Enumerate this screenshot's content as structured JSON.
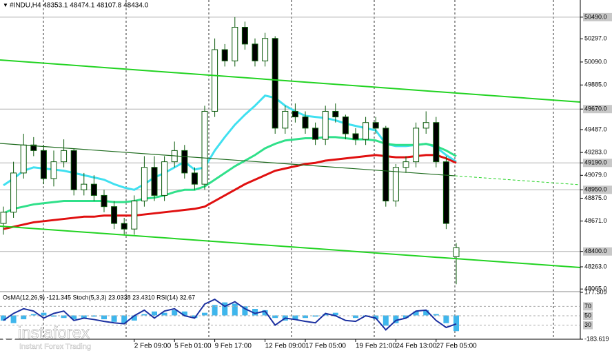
{
  "chart_data": {
    "type": "candlestick",
    "title": "#INDU,H4  48353.1 48474.1 48107.8 48434.0",
    "categories": [
      null,
      null,
      null,
      null,
      null,
      null,
      null,
      null,
      null,
      null,
      null,
      null,
      null,
      "2 Feb 09:00",
      null,
      null,
      null,
      "5 Feb 01:00",
      null,
      null,
      null,
      "9 Feb 17:00",
      null,
      null,
      null,
      null,
      "12 Feb 09:00",
      null,
      null,
      null,
      "17 Feb 05:00",
      null,
      null,
      null,
      null,
      "19 Feb 21:00",
      null,
      null,
      null,
      "24 Feb 13:00",
      null,
      null,
      null,
      "27 Feb 05:00",
      null,
      null
    ],
    "open": [
      48650,
      48750,
      49100,
      49350,
      49300,
      49050,
      49200,
      49300,
      48950,
      49000,
      48900,
      48800,
      48650,
      48600,
      48850,
      49150,
      48900,
      49200,
      49300,
      49100,
      49000,
      49650,
      50200,
      50100,
      50400,
      50250,
      50100,
      50300,
      49500,
      49650,
      49600,
      49500,
      49400,
      49650,
      49600,
      49450,
      49400,
      49550,
      49500,
      48850,
      49150,
      49200,
      49500,
      49550,
      49200,
      48353.1
    ],
    "high": [
      48800,
      49200,
      49450,
      49420,
      49350,
      49300,
      49400,
      49320,
      49100,
      49080,
      48950,
      48850,
      48700,
      48900,
      49250,
      49250,
      49250,
      49380,
      49350,
      49150,
      49700,
      50300,
      50250,
      50490,
      50450,
      50300,
      50350,
      50320,
      49700,
      49720,
      49650,
      49550,
      49700,
      49720,
      49620,
      49500,
      49600,
      49600,
      49520,
      49180,
      49250,
      49550,
      49650,
      49600,
      49250,
      48474.1
    ],
    "low": [
      48550,
      48700,
      49050,
      49250,
      49000,
      48980,
      49150,
      48900,
      48900,
      48850,
      48750,
      48600,
      48550,
      48550,
      48800,
      48850,
      48850,
      49150,
      49050,
      48950,
      48950,
      49600,
      50050,
      50050,
      50200,
      50050,
      50050,
      49450,
      49450,
      49550,
      49450,
      49350,
      49350,
      49550,
      49400,
      49350,
      49350,
      49450,
      48800,
      48800,
      49100,
      49150,
      49450,
      49150,
      48600,
      48107.8
    ],
    "close": [
      48750,
      49100,
      49350,
      49300,
      49050,
      49200,
      49300,
      48950,
      49000,
      48900,
      48800,
      48650,
      48600,
      48850,
      49150,
      48900,
      49200,
      49300,
      49100,
      49000,
      49650,
      50200,
      50100,
      50400,
      50250,
      50100,
      50300,
      49500,
      49650,
      49600,
      49500,
      49400,
      49650,
      49600,
      49450,
      49400,
      49550,
      49500,
      48850,
      49150,
      49200,
      49500,
      49550,
      49200,
      48650,
      48434.0
    ],
    "series": [
      {
        "color": "#40e0f0",
        "values": [
          48990,
          49050,
          49120,
          49150,
          49140,
          49130,
          49120,
          49100,
          49080,
          49060,
          49040,
          49000,
          48970,
          48950,
          49000,
          49060,
          49100,
          49150,
          49200,
          49130,
          49150,
          49300,
          49420,
          49530,
          49620,
          49700,
          49790,
          49770,
          49700,
          49650,
          49610,
          49600,
          49590,
          49570,
          49540,
          49520,
          49500,
          49480,
          49360,
          49340,
          49340,
          49350,
          49360,
          49330,
          49260,
          49200
        ]
      },
      {
        "color": "#30e08a",
        "values": [
          48740,
          48780,
          48800,
          48820,
          48830,
          48840,
          48850,
          48850,
          48850,
          48850,
          48850,
          48840,
          48840,
          48850,
          48870,
          48880,
          48900,
          48930,
          48950,
          48950,
          48980,
          49040,
          49100,
          49160,
          49210,
          49260,
          49320,
          49360,
          49390,
          49400,
          49410,
          49410,
          49420,
          49420,
          49410,
          49400,
          49400,
          49390,
          49360,
          49350,
          49350,
          49350,
          49360,
          49340,
          49300,
          49250
        ]
      },
      {
        "color": "#e01010",
        "values": [
          48600,
          48620,
          48640,
          48660,
          48670,
          48680,
          48690,
          48700,
          48710,
          48710,
          48720,
          48720,
          48720,
          48720,
          48730,
          48740,
          48750,
          48760,
          48770,
          48780,
          48800,
          48850,
          48900,
          48950,
          49000,
          49040,
          49080,
          49120,
          49140,
          49160,
          49180,
          49190,
          49210,
          49220,
          49230,
          49240,
          49250,
          49260,
          49250,
          49240,
          49240,
          49250,
          49260,
          49260,
          49230,
          49190
        ]
      }
    ],
    "ylim": [
      48060,
      50643
    ],
    "yticks": [
      {
        "value": 50490,
        "label": "50490.0"
      },
      {
        "value": 50297,
        "label": "50297.0"
      },
      {
        "value": 50090,
        "label": "50090.0"
      },
      {
        "value": 49885,
        "label": "49885.0"
      },
      {
        "value": 49670,
        "label": "49670.0"
      },
      {
        "value": 49487,
        "label": "49487.0"
      },
      {
        "value": 49283,
        "label": "49283.0"
      },
      {
        "value": 49190,
        "label": "49190.0"
      },
      {
        "value": 49079,
        "label": "49079.0"
      },
      {
        "value": 48950,
        "label": "48950.0"
      },
      {
        "value": 48875,
        "label": "48875.0"
      },
      {
        "value": 48671,
        "label": "48671.0"
      },
      {
        "value": 48400,
        "label": "48400.0"
      },
      {
        "value": 48263,
        "label": "48263.0"
      },
      {
        "value": 48065,
        "label": "48065.0"
      }
    ],
    "levels": [
      50490,
      49670,
      49190,
      48950,
      48400
    ],
    "indicator": {
      "title": "OsMA(12,26,9) -121.345  Stoch(5,3,3) 23.0338 23.4310  RSI(14) 32.67",
      "osma": [
        -40,
        -60,
        -30,
        10,
        20,
        -10,
        -20,
        -30,
        -20,
        -10,
        -30,
        -50,
        -60,
        -40,
        10,
        30,
        20,
        40,
        30,
        -20,
        20,
        80,
        100,
        90,
        70,
        50,
        40,
        -20,
        -40,
        -30,
        -20,
        -10,
        10,
        20,
        0,
        -20,
        -10,
        -30,
        -80,
        -60,
        -20,
        30,
        40,
        10,
        -60,
        -121.345
      ],
      "osma_color": "#3fb6ec",
      "rsi": [
        40,
        55,
        65,
        60,
        45,
        55,
        60,
        40,
        45,
        42,
        38,
        35,
        33,
        50,
        62,
        45,
        60,
        65,
        50,
        45,
        75,
        85,
        70,
        80,
        65,
        55,
        60,
        30,
        45,
        42,
        38,
        35,
        55,
        50,
        40,
        38,
        50,
        45,
        20,
        40,
        45,
        60,
        62,
        40,
        25,
        32.67
      ],
      "rsi_color": "#1a2fa0",
      "ylim": [
        -183.619,
        177.509
      ],
      "yticks": [
        177.509,
        -183.619
      ],
      "level_lim": [
        0,
        100
      ],
      "level_ticks": [
        70,
        50,
        30
      ]
    }
  },
  "watermark": {
    "brand": "instaforex",
    "tagline": "Instant Forex Trading"
  }
}
